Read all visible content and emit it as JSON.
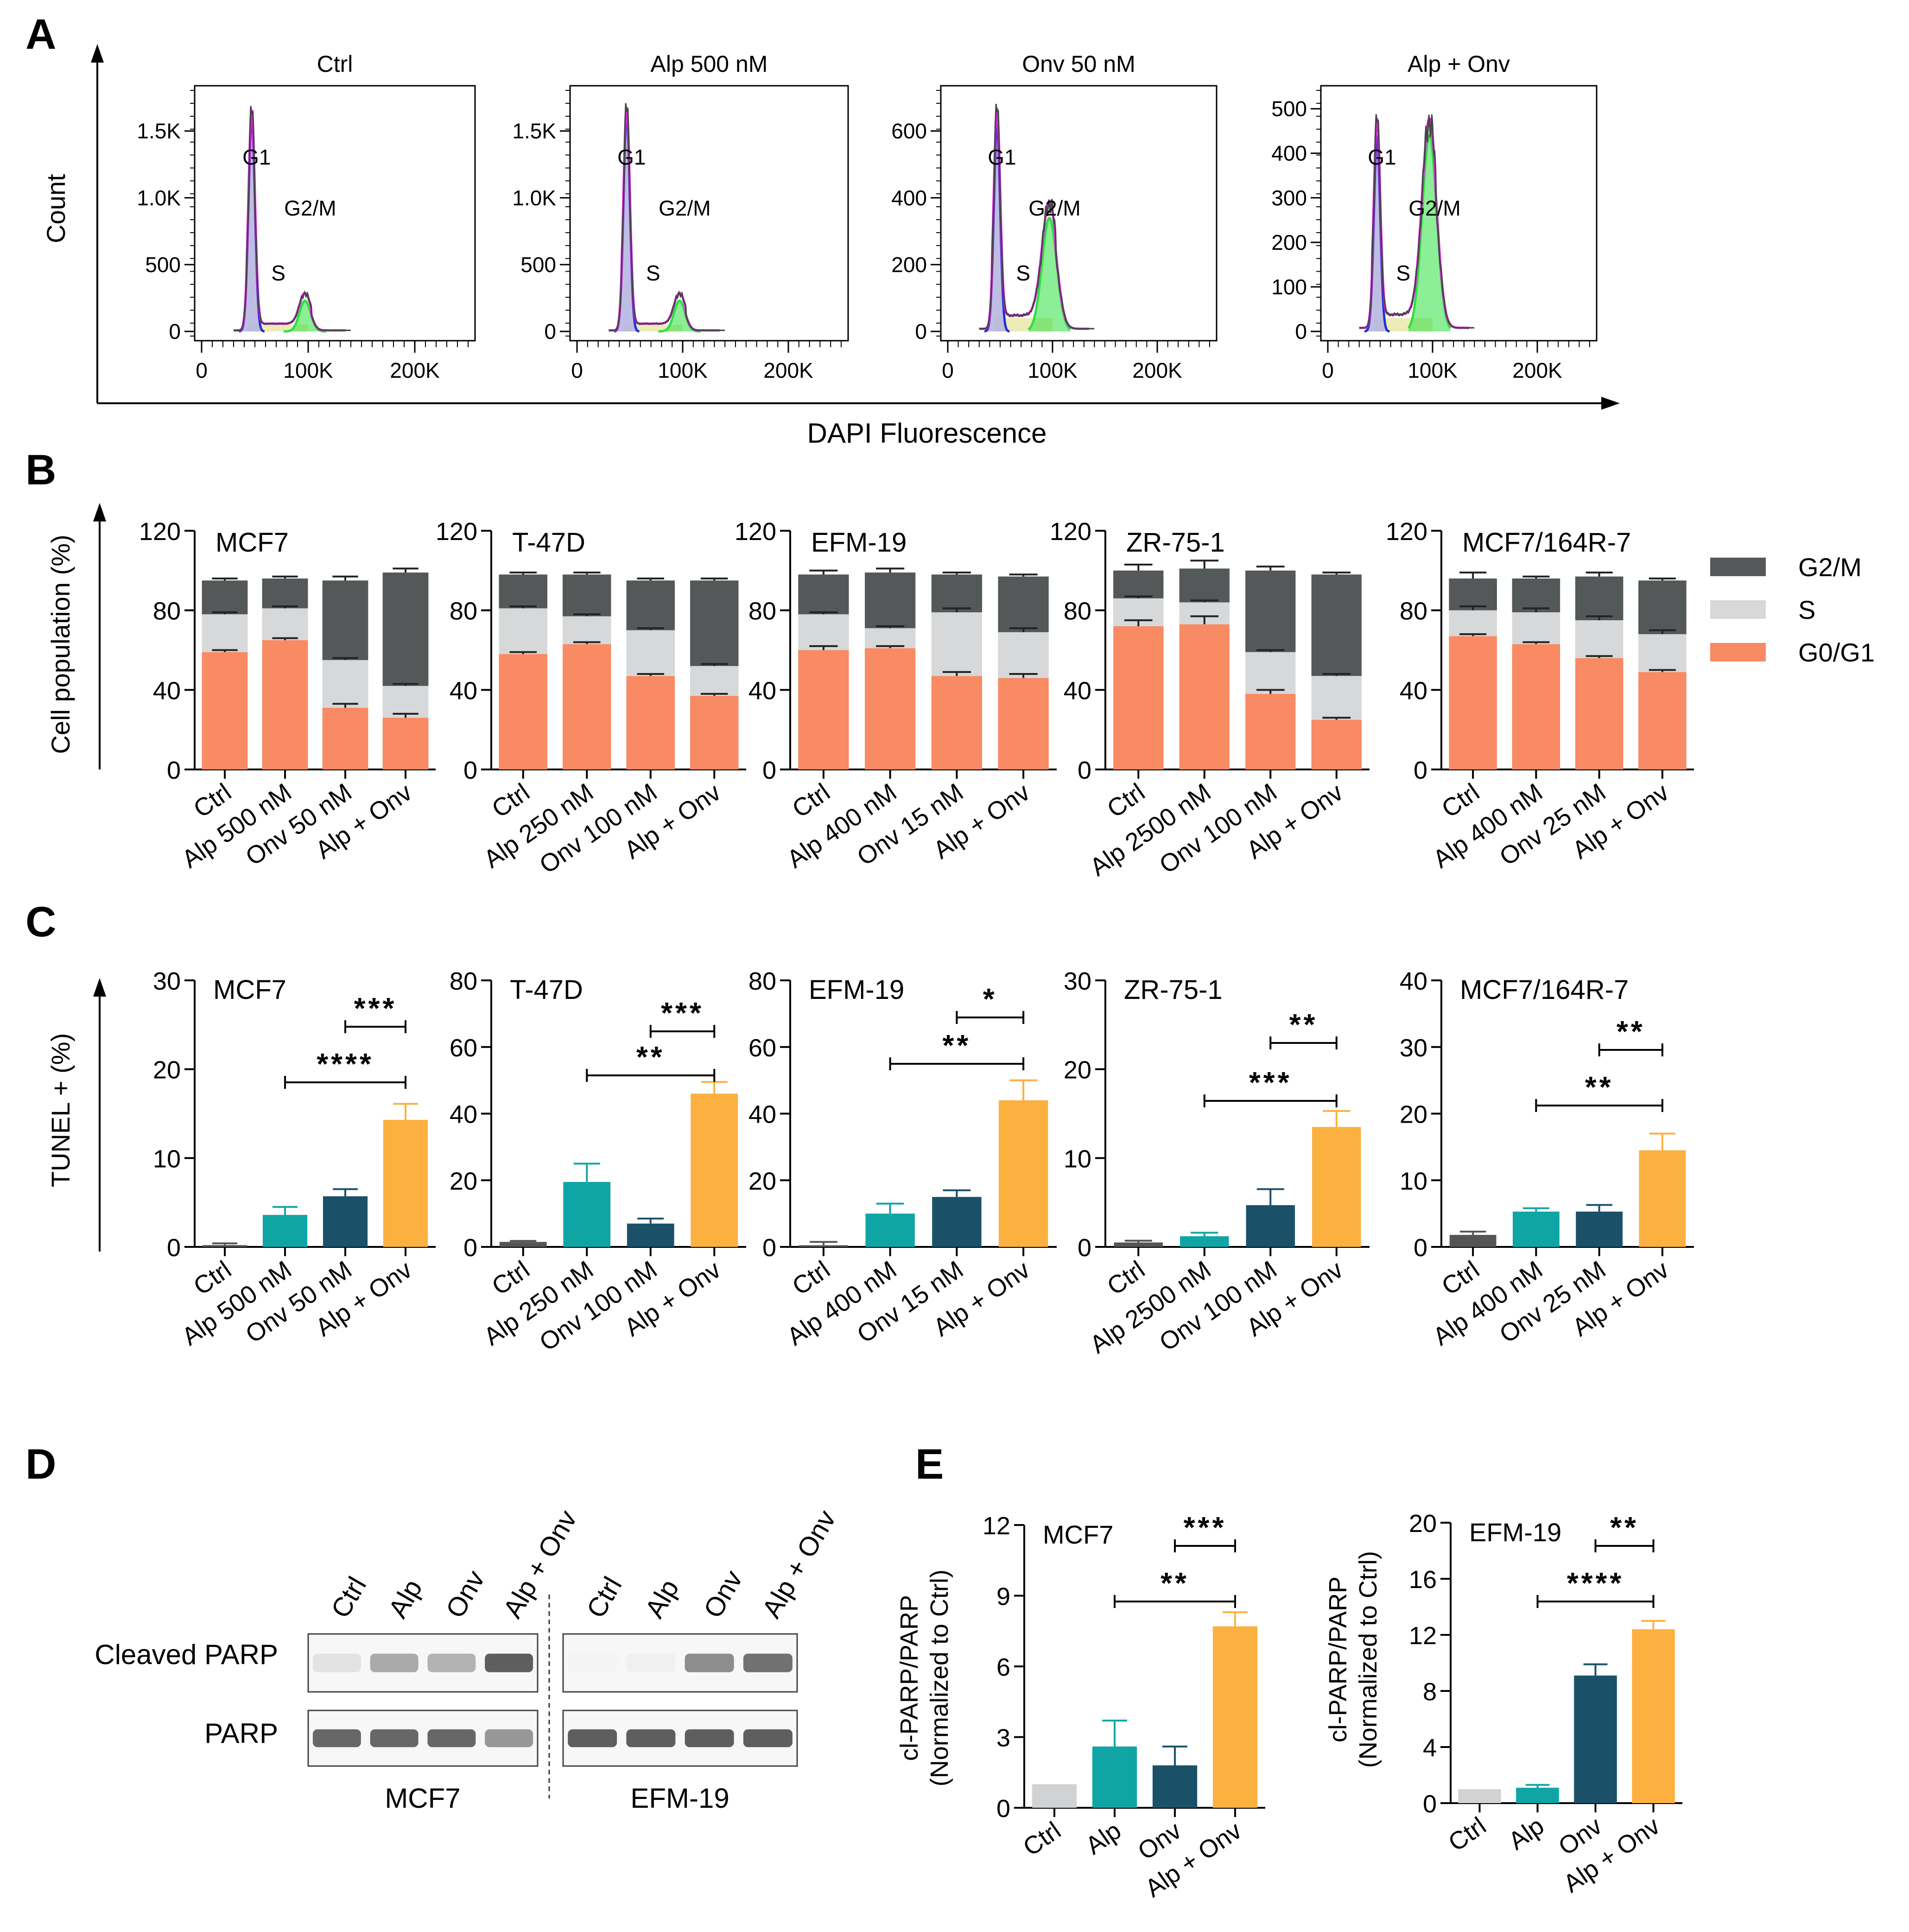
{
  "panel_letters": {
    "A": "A",
    "B": "B",
    "C": "C",
    "D": "D",
    "E": "E"
  },
  "colors": {
    "g0g1": "#f88a64",
    "s": "#d6d8d9",
    "g2m": "#545859",
    "ctrl_grey": "#555555",
    "ctrl_light": "#d0d2d3",
    "teal": "#10a5a5",
    "navy": "#1b5168",
    "orange": "#fbb040",
    "flow_magenta": "#e020e0",
    "flow_blue": "#2030d8",
    "flow_green": "#2ee040",
    "flow_lavender": "#b3b3df",
    "flow_yellow": "#e9e6a6"
  },
  "chart_data": [
    {
      "panel": "A",
      "type": "histogram",
      "ylabel": "Count",
      "xlabel": "DAPI Fluorescence",
      "plots": [
        {
          "title": "Ctrl",
          "yticks": [
            "0",
            "500",
            "1.0K",
            "1.5K"
          ],
          "xticks": [
            "0",
            "100K",
            "200K"
          ],
          "ymax": 1700,
          "g1_peak": 1600,
          "g2_peak": 230,
          "s_level": 50,
          "labels": {
            "g1": "G1",
            "s": "S",
            "g2m": "G2/M"
          }
        },
        {
          "title": "Alp 500 nM",
          "yticks": [
            "0",
            "500",
            "1.0K",
            "1.5K"
          ],
          "xticks": [
            "0",
            "100K",
            "200K"
          ],
          "ymax": 1700,
          "g1_peak": 1620,
          "g2_peak": 230,
          "s_level": 50,
          "labels": {
            "g1": "G1",
            "s": "S",
            "g2m": "G2/M"
          }
        },
        {
          "title": "Onv 50 nM",
          "yticks": [
            "0",
            "200",
            "400",
            "600"
          ],
          "xticks": [
            "0",
            "100K",
            "200K"
          ],
          "ymax": 680,
          "g1_peak": 620,
          "g2_peak": 340,
          "s_level": 40,
          "labels": {
            "g1": "G1",
            "s": "S",
            "g2m": "G2/M"
          }
        },
        {
          "title": "Alp + Onv",
          "yticks": [
            "0",
            "100",
            "200",
            "300",
            "400",
            "500"
          ],
          "xticks": [
            "0",
            "100K",
            "200K"
          ],
          "ymax": 510,
          "g1_peak": 440,
          "g2_peak": 440,
          "s_level": 30,
          "labels": {
            "g1": "G1",
            "s": "S",
            "g2m": "G2/M"
          }
        }
      ]
    },
    {
      "panel": "B",
      "type": "stacked_bar",
      "ylabel": "Cell population (%)",
      "ylim": [
        0,
        120
      ],
      "yticks": [
        "0",
        "40",
        "80",
        "120"
      ],
      "legend": [
        "G2/M",
        "S",
        "G0/G1"
      ],
      "plots": [
        {
          "title": "MCF7",
          "categories": [
            "Ctrl",
            "Alp 500 nM",
            "Onv 50 nM",
            "Alp + Onv"
          ],
          "g0g1": [
            59,
            65,
            31,
            26
          ],
          "s": [
            19,
            16,
            24,
            16
          ],
          "g2m": [
            17,
            15,
            40,
            57
          ],
          "g0g1_err": [
            1,
            1,
            2,
            2
          ],
          "s_err": [
            1,
            1,
            1,
            1
          ],
          "total_err": [
            1,
            1,
            2,
            2
          ]
        },
        {
          "title": "T-47D",
          "categories": [
            "Ctrl",
            "Alp 250 nM",
            "Onv 100 nM",
            "Alp + Onv"
          ],
          "g0g1": [
            58,
            63,
            47,
            37
          ],
          "s": [
            23,
            14,
            23,
            15
          ],
          "g2m": [
            17,
            21,
            25,
            43
          ],
          "g0g1_err": [
            1,
            1,
            1,
            1
          ],
          "s_err": [
            1,
            1,
            1,
            1
          ],
          "total_err": [
            1,
            1,
            1,
            1
          ]
        },
        {
          "title": "EFM-19",
          "categories": [
            "Ctrl",
            "Alp 400 nM",
            "Onv 15 nM",
            "Alp + Onv"
          ],
          "g0g1": [
            60,
            61,
            47,
            46
          ],
          "s": [
            18,
            10,
            32,
            23
          ],
          "g2m": [
            20,
            28,
            19,
            28
          ],
          "g0g1_err": [
            2,
            1,
            2,
            2
          ],
          "s_err": [
            1,
            1,
            2,
            2
          ],
          "total_err": [
            2,
            2,
            1,
            1
          ]
        },
        {
          "title": "ZR-75-1",
          "categories": [
            "Ctrl",
            "Alp 2500 nM",
            "Onv 100 nM",
            "Alp + Onv"
          ],
          "g0g1": [
            72,
            73,
            38,
            25
          ],
          "s": [
            14,
            11,
            21,
            22
          ],
          "g2m": [
            14,
            17,
            41,
            51
          ],
          "g0g1_err": [
            3,
            4,
            2,
            1
          ],
          "s_err": [
            1,
            1,
            1,
            1
          ],
          "total_err": [
            3,
            4,
            2,
            1
          ]
        },
        {
          "title": "MCF7/164R-7",
          "categories": [
            "Ctrl",
            "Alp 400 nM",
            "Onv 25 nM",
            "Alp + Onv"
          ],
          "g0g1": [
            67,
            63,
            56,
            49
          ],
          "s": [
            13,
            16,
            19,
            19
          ],
          "g2m": [
            16,
            17,
            22,
            27
          ],
          "g0g1_err": [
            1,
            1,
            1,
            1
          ],
          "s_err": [
            2,
            2,
            2,
            2
          ],
          "total_err": [
            3,
            1,
            2,
            1
          ]
        }
      ]
    },
    {
      "panel": "C",
      "type": "bar",
      "ylabel": "TUNEL + (%)",
      "plots": [
        {
          "title": "MCF7",
          "categories": [
            "Ctrl",
            "Alp 500 nM",
            "Onv 50 nM",
            "Alp + Onv"
          ],
          "values": [
            0.2,
            3.6,
            5.7,
            14.3
          ],
          "errors": [
            0.2,
            0.9,
            0.8,
            1.8
          ],
          "ylim": [
            0,
            30
          ],
          "yticks": [
            "0",
            "10",
            "20",
            "30"
          ],
          "brackets": [
            {
              "from": 2,
              "to": 3,
              "label": "***"
            },
            {
              "from": 1,
              "to": 3,
              "label": "****"
            }
          ]
        },
        {
          "title": "T-47D",
          "categories": [
            "Ctrl",
            "Alp 250 nM",
            "Onv 100 nM",
            "Alp + Onv"
          ],
          "values": [
            1.5,
            19.5,
            7.0,
            46.0
          ],
          "errors": [
            0.3,
            5.5,
            1.5,
            3.5
          ],
          "ylim": [
            0,
            80
          ],
          "yticks": [
            "0",
            "20",
            "40",
            "60",
            "80"
          ],
          "brackets": [
            {
              "from": 2,
              "to": 3,
              "label": "***"
            },
            {
              "from": 1,
              "to": 3,
              "label": "**"
            }
          ]
        },
        {
          "title": "EFM-19",
          "categories": [
            "Ctrl",
            "Alp 400 nM",
            "Onv 15 nM",
            "Alp + Onv"
          ],
          "values": [
            0.5,
            10.0,
            15.0,
            44.0
          ],
          "errors": [
            1.0,
            3.0,
            2.0,
            6.0
          ],
          "ylim": [
            0,
            80
          ],
          "yticks": [
            "0",
            "20",
            "40",
            "60",
            "80"
          ],
          "brackets": [
            {
              "from": 2,
              "to": 3,
              "label": "*"
            },
            {
              "from": 1,
              "to": 3,
              "label": "**"
            }
          ]
        },
        {
          "title": "ZR-75-1",
          "categories": [
            "Ctrl",
            "Alp 2500 nM",
            "Onv 100 nM",
            "Alp + Onv"
          ],
          "values": [
            0.5,
            1.2,
            4.7,
            13.5
          ],
          "errors": [
            0.2,
            0.4,
            1.8,
            1.8
          ],
          "ylim": [
            0,
            30
          ],
          "yticks": [
            "0",
            "10",
            "20",
            "30"
          ],
          "brackets": [
            {
              "from": 2,
              "to": 3,
              "label": "**"
            },
            {
              "from": 1,
              "to": 3,
              "label": "***"
            }
          ]
        },
        {
          "title": "MCF7/164R-7",
          "categories": [
            "Ctrl",
            "Alp 400 nM",
            "Onv 25 nM",
            "Alp + Onv"
          ],
          "values": [
            1.8,
            5.3,
            5.3,
            14.5
          ],
          "errors": [
            0.5,
            0.5,
            1.0,
            2.5
          ],
          "ylim": [
            0,
            40
          ],
          "yticks": [
            "0",
            "10",
            "20",
            "30",
            "40"
          ],
          "brackets": [
            {
              "from": 2,
              "to": 3,
              "label": "**"
            },
            {
              "from": 1,
              "to": 3,
              "label": "**"
            }
          ]
        }
      ]
    },
    {
      "panel": "E",
      "type": "bar",
      "ylabel_line1": "cl-PARP/PARP",
      "ylabel_line2": "(Normalized to Ctrl)",
      "plots": [
        {
          "title": "MCF7",
          "categories": [
            "Ctrl",
            "Alp",
            "Onv",
            "Alp + Onv"
          ],
          "values": [
            1.0,
            2.6,
            1.8,
            7.7
          ],
          "errors": [
            0,
            1.1,
            0.8,
            0.6
          ],
          "ylim": [
            0,
            12
          ],
          "yticks": [
            "0",
            "3",
            "6",
            "9",
            "12"
          ],
          "brackets": [
            {
              "from": 2,
              "to": 3,
              "label": "***"
            },
            {
              "from": 1,
              "to": 3,
              "label": "**"
            }
          ]
        },
        {
          "title": "EFM-19",
          "categories": [
            "Ctrl",
            "Alp",
            "Onv",
            "Alp + Onv"
          ],
          "values": [
            1.0,
            1.1,
            9.1,
            12.4
          ],
          "errors": [
            0,
            0.2,
            0.8,
            0.6
          ],
          "ylim": [
            0,
            20
          ],
          "yticks": [
            "0",
            "4",
            "8",
            "12",
            "16",
            "20"
          ],
          "brackets": [
            {
              "from": 2,
              "to": 3,
              "label": "**"
            },
            {
              "from": 1,
              "to": 3,
              "label": "****"
            }
          ]
        }
      ]
    }
  ],
  "western": {
    "lanes_left": [
      "Ctrl",
      "Alp",
      "Onv",
      "Alp + Onv"
    ],
    "lanes_right": [
      "Ctrl",
      "Alp",
      "Onv",
      "Alp + Onv"
    ],
    "row_labels": [
      "Cleaved PARP",
      "PARP"
    ],
    "cell_lines": [
      "MCF7",
      "EFM-19"
    ],
    "cleaved_intensity_left": [
      0.15,
      0.45,
      0.4,
      0.85
    ],
    "cleaved_intensity_right": [
      0.06,
      0.08,
      0.6,
      0.75
    ],
    "parp_intensity_left": [
      0.8,
      0.8,
      0.8,
      0.55
    ],
    "parp_intensity_right": [
      0.85,
      0.85,
      0.85,
      0.85
    ]
  }
}
